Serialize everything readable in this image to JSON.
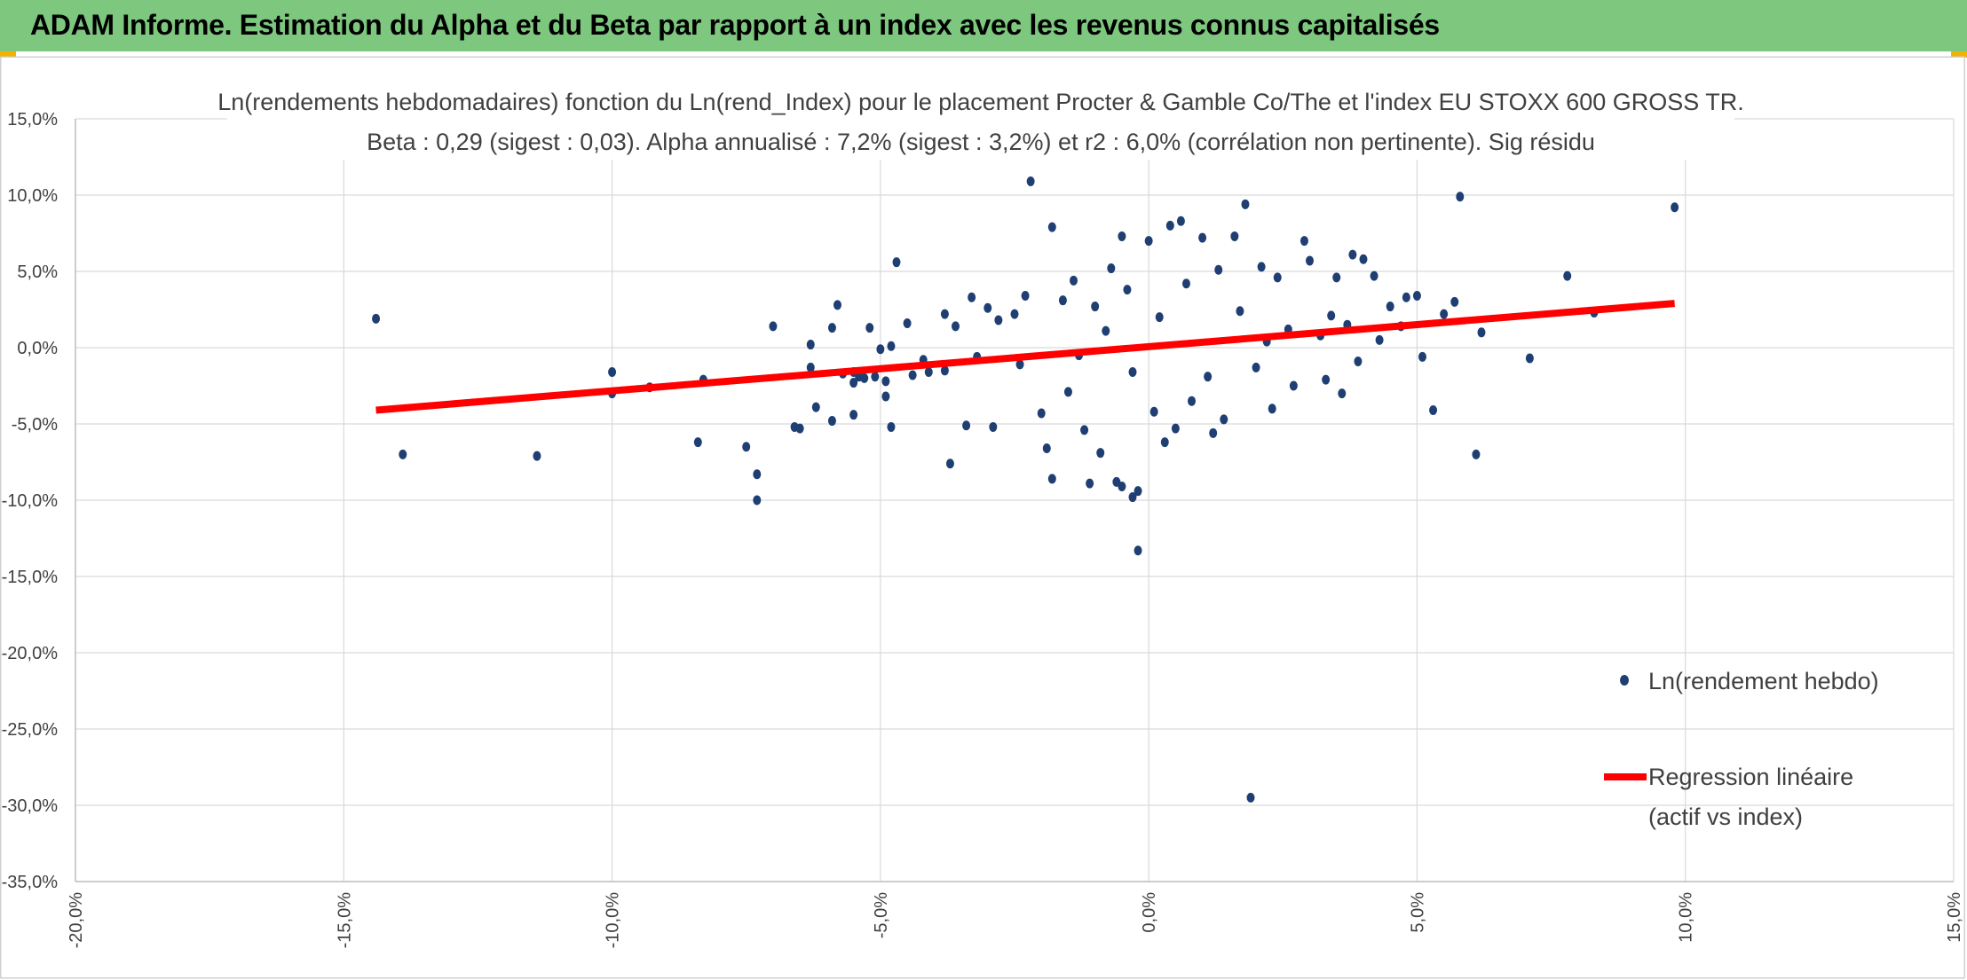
{
  "header": {
    "title": "ADAM Informe. Estimation du Alpha et du Beta par rapport à un index avec les revenus connus capitalisés"
  },
  "colors": {
    "banner": "#7dc77e",
    "points": "#1f3f73",
    "regression": "#ff0000",
    "grid": "#d9d9d9"
  },
  "chart_data": {
    "type": "scatter",
    "title": "Ln(rendements hebdomadaires) fonction du Ln(rend_Index) pour le placement Procter & Gamble Co/The et l'index EU STOXX 600 GROSS TR.",
    "subtitle": "Beta : 0,29 (sigest : 0,03). Alpha annualisé : 7,2% (sigest : 3,2%) et r2 : 6,0% (corrélation non pertinente). Sig résidu",
    "xlabel": "",
    "ylabel": "",
    "xlim": [
      -20,
      15
    ],
    "ylim": [
      -35,
      15
    ],
    "grid": true,
    "legend_position": "right",
    "x_ticks": [
      "-20,0%",
      "-15,0%",
      "-10,0%",
      "-5,0%",
      "0,0%",
      "5,0%",
      "10,0%",
      "15,0%"
    ],
    "y_ticks": [
      "15,0%",
      "10,0%",
      "5,0%",
      "0,0%",
      "-5,0%",
      "-10,0%",
      "-15,0%",
      "-20,0%",
      "-25,0%",
      "-30,0%",
      "-35,0%"
    ],
    "series": [
      {
        "name": "Ln(rendement hebdo)",
        "kind": "scatter",
        "color": "#1f3f73",
        "points": [
          [
            -14.4,
            1.9
          ],
          [
            -13.9,
            -7.0
          ],
          [
            -11.4,
            -7.1
          ],
          [
            -10.0,
            -1.6
          ],
          [
            -10.0,
            -3.0
          ],
          [
            -9.3,
            -2.6
          ],
          [
            -8.4,
            -6.2
          ],
          [
            -8.3,
            -2.1
          ],
          [
            -7.5,
            -6.5
          ],
          [
            -7.3,
            -8.3
          ],
          [
            -7.3,
            -10.0
          ],
          [
            -7.0,
            1.4
          ],
          [
            -6.6,
            -5.2
          ],
          [
            -6.5,
            -5.3
          ],
          [
            -6.3,
            0.2
          ],
          [
            -6.3,
            -1.3
          ],
          [
            -6.2,
            -3.9
          ],
          [
            -5.9,
            -4.8
          ],
          [
            -5.9,
            1.3
          ],
          [
            -5.8,
            2.8
          ],
          [
            -5.7,
            -1.7
          ],
          [
            -5.5,
            -1.6
          ],
          [
            -5.5,
            -2.3
          ],
          [
            -5.5,
            -4.4
          ],
          [
            -5.4,
            -1.9
          ],
          [
            -5.3,
            -2.0
          ],
          [
            -5.2,
            1.3
          ],
          [
            -5.1,
            -1.9
          ],
          [
            -5.0,
            -0.1
          ],
          [
            -4.9,
            -3.2
          ],
          [
            -4.9,
            -2.2
          ],
          [
            -4.8,
            0.1
          ],
          [
            -4.8,
            -5.2
          ],
          [
            -4.7,
            5.6
          ],
          [
            -4.5,
            1.6
          ],
          [
            -4.4,
            -1.8
          ],
          [
            -4.2,
            -0.8
          ],
          [
            -4.1,
            -1.6
          ],
          [
            -3.8,
            -1.5
          ],
          [
            -3.8,
            2.2
          ],
          [
            -3.7,
            -7.6
          ],
          [
            -3.6,
            1.4
          ],
          [
            -3.4,
            -5.1
          ],
          [
            -3.3,
            3.3
          ],
          [
            -3.2,
            -0.6
          ],
          [
            -3.0,
            2.6
          ],
          [
            -2.9,
            -5.2
          ],
          [
            -2.8,
            1.8
          ],
          [
            -2.5,
            2.2
          ],
          [
            -2.4,
            -1.1
          ],
          [
            -2.3,
            3.4
          ],
          [
            -2.2,
            10.9
          ],
          [
            -2.0,
            -4.3
          ],
          [
            -1.9,
            -6.6
          ],
          [
            -1.8,
            -8.6
          ],
          [
            -1.8,
            7.9
          ],
          [
            -1.6,
            3.1
          ],
          [
            -1.5,
            -2.9
          ],
          [
            -1.4,
            4.4
          ],
          [
            -1.3,
            -0.5
          ],
          [
            -1.2,
            -5.4
          ],
          [
            -1.1,
            -8.9
          ],
          [
            -1.0,
            2.7
          ],
          [
            -0.9,
            -6.9
          ],
          [
            -0.8,
            1.1
          ],
          [
            -0.7,
            5.2
          ],
          [
            -0.6,
            -8.8
          ],
          [
            -0.5,
            -9.1
          ],
          [
            -0.5,
            7.3
          ],
          [
            -0.4,
            3.8
          ],
          [
            -0.3,
            -1.6
          ],
          [
            -0.3,
            -9.8
          ],
          [
            -0.2,
            -13.3
          ],
          [
            -0.2,
            -9.4
          ],
          [
            0.0,
            7.0
          ],
          [
            0.1,
            -4.2
          ],
          [
            0.2,
            2.0
          ],
          [
            0.3,
            -6.2
          ],
          [
            0.4,
            8.0
          ],
          [
            0.5,
            -5.3
          ],
          [
            0.6,
            8.3
          ],
          [
            0.7,
            4.2
          ],
          [
            0.8,
            -3.5
          ],
          [
            1.0,
            7.2
          ],
          [
            1.1,
            -1.9
          ],
          [
            1.2,
            -5.6
          ],
          [
            1.3,
            5.1
          ],
          [
            1.4,
            -4.7
          ],
          [
            1.6,
            7.3
          ],
          [
            1.7,
            2.4
          ],
          [
            1.8,
            9.4
          ],
          [
            1.9,
            -29.5
          ],
          [
            2.0,
            -1.3
          ],
          [
            2.1,
            5.3
          ],
          [
            2.2,
            0.4
          ],
          [
            2.3,
            -4.0
          ],
          [
            2.4,
            4.6
          ],
          [
            2.6,
            1.2
          ],
          [
            2.7,
            -2.5
          ],
          [
            2.9,
            7.0
          ],
          [
            3.0,
            5.7
          ],
          [
            3.2,
            0.8
          ],
          [
            3.3,
            -2.1
          ],
          [
            3.4,
            2.1
          ],
          [
            3.5,
            4.6
          ],
          [
            3.6,
            -3.0
          ],
          [
            3.7,
            1.5
          ],
          [
            3.8,
            6.1
          ],
          [
            3.9,
            -0.9
          ],
          [
            4.0,
            5.8
          ],
          [
            4.2,
            4.7
          ],
          [
            4.3,
            0.5
          ],
          [
            4.5,
            2.7
          ],
          [
            4.7,
            1.4
          ],
          [
            4.8,
            3.3
          ],
          [
            5.0,
            3.4
          ],
          [
            5.1,
            -0.6
          ],
          [
            5.3,
            -4.1
          ],
          [
            5.5,
            2.2
          ],
          [
            5.7,
            3.0
          ],
          [
            5.8,
            9.9
          ],
          [
            6.1,
            -7.0
          ],
          [
            6.2,
            1.0
          ],
          [
            7.1,
            -0.7
          ],
          [
            7.8,
            4.7
          ],
          [
            8.3,
            2.3
          ],
          [
            9.8,
            9.2
          ]
        ]
      },
      {
        "name": "Regression linéaire (actif vs index)",
        "kind": "line",
        "color": "#ff0000",
        "points": [
          [
            -14.4,
            -4.1
          ],
          [
            9.8,
            2.9
          ]
        ]
      }
    ],
    "legend": [
      {
        "label": "Ln(rendement hebdo)",
        "marker": "dot"
      },
      {
        "label_lines": [
          "Regression linéaire",
          "(actif vs index)"
        ],
        "marker": "line"
      }
    ]
  }
}
